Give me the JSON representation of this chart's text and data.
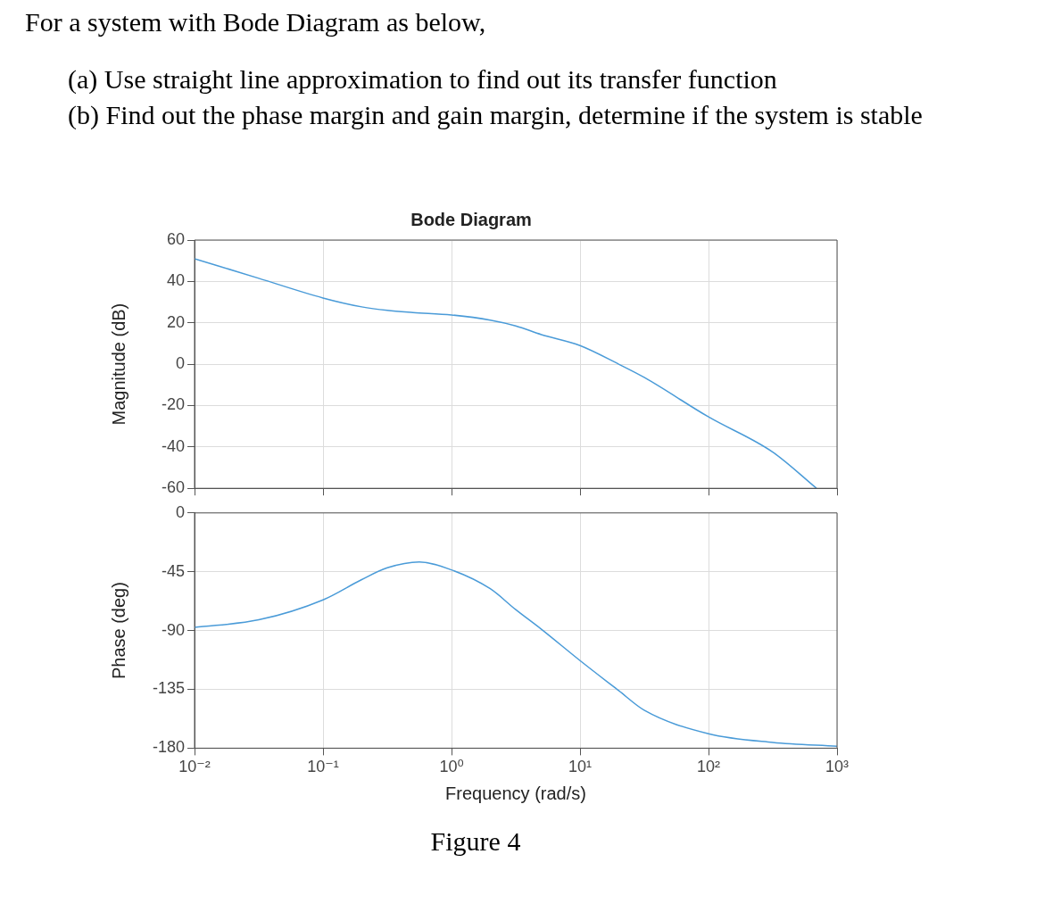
{
  "chart_data": [
    {
      "type": "line",
      "title": "Bode Diagram",
      "ylabel": "Magnitude (dB)",
      "annotations": [
        "For a system with Bode Diagram as below,",
        "(a) Use straight line approximation to find out its transfer function",
        "(b) Find out the phase margin and gain margin, determine if the system is stable"
      ],
      "x": [
        0.01,
        0.0316,
        0.1,
        0.2,
        0.316,
        0.5,
        1,
        2,
        3.16,
        5,
        10,
        20,
        31.6,
        100,
        316,
        692
      ],
      "series": [
        {
          "color": "#4a9bd8",
          "values": [
            51,
            41.5,
            32,
            27.7,
            26,
            25,
            23.8,
            21.3,
            18.5,
            14.3,
            9,
            0,
            -6.4,
            -25.5,
            -42.5,
            -60
          ]
        }
      ],
      "xlim": [
        0.01,
        1000
      ],
      "xticks": [
        {
          "value": 0.01,
          "label": null
        },
        {
          "value": 0.1,
          "label": null
        },
        {
          "value": 1,
          "label": null
        },
        {
          "value": 10,
          "label": null
        },
        {
          "value": 100,
          "label": null
        },
        {
          "value": 1000,
          "label": null
        }
      ],
      "ylim": [
        -60,
        60
      ],
      "yticks": [
        -60,
        -40,
        -20,
        0,
        20,
        40,
        60
      ],
      "log": "x",
      "grid": true,
      "legend": false,
      "marker": "none",
      "tick_labels": "y"
    },
    {
      "type": "line",
      "xlabel": "Frequency (rad/s)",
      "ylabel": "Phase (deg)",
      "annotations": [
        "Figure 4"
      ],
      "x": [
        0.01,
        0.0316,
        0.1,
        0.2,
        0.316,
        0.562,
        1,
        2,
        3.16,
        5,
        10,
        20,
        31.6,
        100,
        316,
        1000
      ],
      "series": [
        {
          "color": "#4a9bd8",
          "values": [
            -87.6,
            -81.8,
            -66.5,
            -51,
            -42,
            -37.5,
            -43.6,
            -58,
            -74,
            -89,
            -113,
            -136,
            -151,
            -169,
            -175.6,
            -178.5
          ]
        }
      ],
      "xlim": [
        0.01,
        1000
      ],
      "xticks": [
        {
          "value": 0.01,
          "label": "10⁻²"
        },
        {
          "value": 0.1,
          "label": "10⁻¹"
        },
        {
          "value": 1,
          "label": "10⁰"
        },
        {
          "value": 10,
          "label": "10¹"
        },
        {
          "value": 100,
          "label": "10²"
        },
        {
          "value": 1000,
          "label": "10³"
        }
      ],
      "ylim": [
        -180,
        0
      ],
      "yticks": [
        -180,
        -135,
        -90,
        -45,
        0
      ],
      "log": "x",
      "grid": true,
      "legend": false,
      "marker": "none"
    }
  ]
}
